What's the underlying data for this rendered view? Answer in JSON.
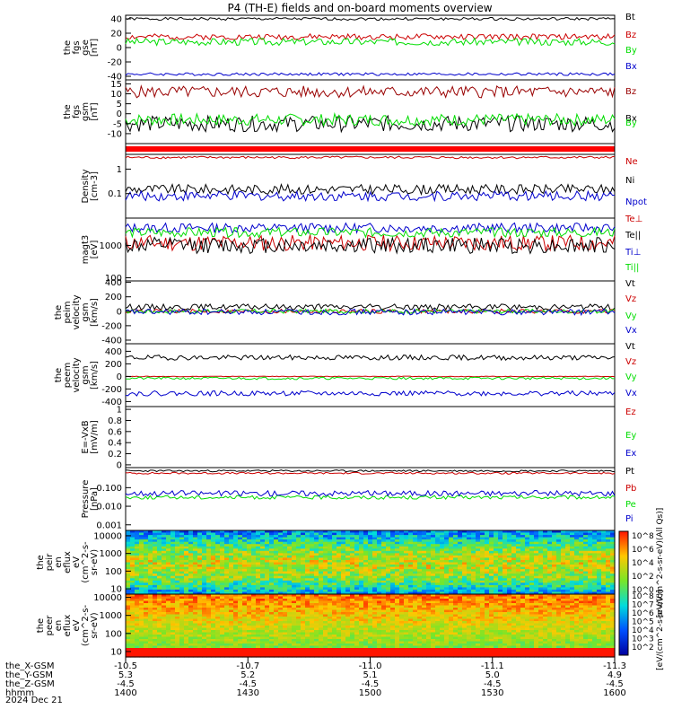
{
  "title": "P4 (TH-E) fields and on-board moments overview",
  "date_label": "2024 Dec 21",
  "colors": {
    "black": "#000000",
    "red": "#cc0000",
    "darkred": "#990000",
    "green": "#00dd00",
    "blue": "#0000cc"
  },
  "chart_data": [
    {
      "type": "line",
      "id": "fgs-gse",
      "ylabel_lines": [
        "the",
        "fgs",
        "gse",
        "[nT]"
      ],
      "ylim": [
        -45,
        45
      ],
      "ticks": [
        40,
        20,
        0,
        -20,
        -40
      ],
      "series": [
        {
          "name": "Bt",
          "color": "#000000",
          "base": 40,
          "amp": 2,
          "seed": 1
        },
        {
          "name": "Bz",
          "color": "#cc0000",
          "base": 15,
          "amp": 4,
          "seed": 2
        },
        {
          "name": "By",
          "color": "#00dd00",
          "base": 8,
          "amp": 5,
          "seed": 3
        },
        {
          "name": "Bx",
          "color": "#0000cc",
          "base": -37,
          "amp": 2,
          "seed": 4
        }
      ]
    },
    {
      "type": "line",
      "id": "fgs-gsm",
      "ylabel_lines": [
        "the",
        "fgs",
        "gsm",
        "[nT]"
      ],
      "ylim": [
        -15,
        17
      ],
      "ticks": [
        15,
        10,
        5,
        0,
        -5,
        -10
      ],
      "series": [
        {
          "name": "Bz",
          "color": "#990000",
          "base": 11,
          "amp": 3,
          "seed": 5
        },
        {
          "name": "Bx",
          "color": "#000000",
          "base": -5,
          "amp": 4,
          "seed": 6
        },
        {
          "name": "By",
          "color": "#00dd00",
          "base": -3,
          "amp": 3,
          "seed": 7
        }
      ]
    },
    {
      "type": "bar",
      "id": "mode-bar",
      "ylabel_lines": [],
      "ticks": []
    },
    {
      "type": "line",
      "id": "density",
      "ylabel_lines": [
        "Density",
        "[cm-3]"
      ],
      "log": true,
      "ylim": [
        0.01,
        4
      ],
      "ticks": [
        1.0,
        0.1
      ],
      "series": [
        {
          "name": "Ne",
          "color": "#cc0000",
          "base": 3,
          "amp": 0.1,
          "seed": 8
        },
        {
          "name": "Ni",
          "color": "#000000",
          "base": 0.15,
          "amp": 0.4,
          "seed": 9
        },
        {
          "name": "Npot",
          "color": "#0000cc",
          "base": 0.08,
          "amp": 0.4,
          "seed": 10
        }
      ]
    },
    {
      "type": "line",
      "id": "temperature",
      "ylabel_lines": [
        "magt3",
        "[eV]"
      ],
      "log": true,
      "ylim": [
        80,
        7000
      ],
      "ticks": [
        1000,
        100
      ],
      "series": [
        {
          "name": "Te⊥",
          "color": "#cc0000",
          "base": 1200,
          "amp": 0.5,
          "seed": 11
        },
        {
          "name": "Te||",
          "color": "#000000",
          "base": 1000,
          "amp": 0.5,
          "seed": 12
        },
        {
          "name": "Ti⊥",
          "color": "#0000cc",
          "base": 3500,
          "amp": 0.3,
          "seed": 13
        },
        {
          "name": "Ti||",
          "color": "#00dd00",
          "base": 2500,
          "amp": 0.3,
          "seed": 14
        }
      ]
    },
    {
      "type": "line",
      "id": "peim-velocity",
      "ylabel_lines": [
        "the",
        "peim",
        "velocity",
        "gsm",
        "[km/s]"
      ],
      "ylim": [
        -450,
        420
      ],
      "ticks": [
        400,
        200,
        0,
        -200,
        -400
      ],
      "series": [
        {
          "name": "Vt",
          "color": "#000000",
          "base": 60,
          "amp": 40,
          "seed": 15
        },
        {
          "name": "Vz",
          "color": "#cc0000",
          "base": 0,
          "amp": 30,
          "seed": 16
        },
        {
          "name": "Vy",
          "color": "#00dd00",
          "base": 0,
          "amp": 30,
          "seed": 17
        },
        {
          "name": "Vx",
          "color": "#0000cc",
          "base": -10,
          "amp": 40,
          "seed": 18
        }
      ]
    },
    {
      "type": "line",
      "id": "peem-velocity",
      "ylabel_lines": [
        "the",
        "peem",
        "velocity",
        "gsm",
        "[km/s]"
      ],
      "ylim": [
        -480,
        520
      ],
      "ticks": [
        400,
        200,
        0,
        -200,
        -400
      ],
      "series": [
        {
          "name": "Vt",
          "color": "#000000",
          "base": 300,
          "amp": 40,
          "seed": 19
        },
        {
          "name": "Vz",
          "color": "#cc0000",
          "base": 0,
          "amp": 5,
          "seed": 20
        },
        {
          "name": "Vy",
          "color": "#00dd00",
          "base": -30,
          "amp": 20,
          "seed": 21
        },
        {
          "name": "Vx",
          "color": "#0000cc",
          "base": -270,
          "amp": 40,
          "seed": 22
        }
      ]
    },
    {
      "type": "line",
      "id": "efield",
      "ylabel_lines": [
        "E=-VxB",
        "[mV/m]"
      ],
      "ylim": [
        -0.05,
        1.05
      ],
      "ticks": [
        1.0,
        0.8,
        0.6,
        0.4,
        0.2,
        0.0
      ],
      "series": [
        {
          "name": "Ez",
          "color": "#cc0000"
        },
        {
          "name": "Ey",
          "color": "#00dd00"
        },
        {
          "name": "Ex",
          "color": "#0000cc"
        }
      ]
    },
    {
      "type": "line",
      "id": "pressure",
      "ylabel_lines": [
        "Pressure",
        "[nPa]"
      ],
      "log": true,
      "ylim": [
        0.0005,
        1.2
      ],
      "ticks": [
        0.1,
        0.01,
        0.001
      ],
      "tick_labels": [
        "0.100",
        "0.010",
        "0.001"
      ],
      "series": [
        {
          "name": "Pt",
          "color": "#000000",
          "base": 0.8,
          "amp": 0.1,
          "seed": 23
        },
        {
          "name": "Pb",
          "color": "#cc0000",
          "base": 0.6,
          "amp": 0.1,
          "seed": 24
        },
        {
          "name": "Pe",
          "color": "#00dd00",
          "base": 0.03,
          "amp": 0.2,
          "seed": 25
        },
        {
          "name": "Pi",
          "color": "#0000cc",
          "base": 0.05,
          "amp": 0.3,
          "seed": 26
        }
      ]
    },
    {
      "type": "heatmap",
      "id": "peir",
      "ylabel_lines": [
        "the",
        "peir",
        "en",
        "eflux",
        "eV",
        "(cm^2-s-",
        "sr-eV)"
      ],
      "log": true,
      "ylim": [
        5,
        20000
      ],
      "ticks": [
        10000,
        1000,
        100,
        10
      ]
    },
    {
      "type": "heatmap",
      "id": "peer",
      "ylabel_lines": [
        "the",
        "peer",
        "en",
        "eflux",
        "eV",
        "(cm^2-s-",
        "sr-eV)"
      ],
      "log": true,
      "ylim": [
        5,
        15000
      ],
      "ticks": [
        10000,
        1000,
        100,
        10
      ]
    }
  ],
  "colorbar": {
    "label": "[eV/(cm^2-s-sr-eV)]",
    "side_label": "[eV/(cm^2-s-sr-eV)(All Qs)]",
    "upper_ticks": [
      "10^8",
      "10^6",
      "10^4",
      "10^2",
      "10^0"
    ],
    "lower_ticks": [
      "10^8",
      "10^7",
      "10^6",
      "10^5",
      "10^4",
      "10^3",
      "10^2"
    ]
  },
  "xaxis": {
    "row_labels": [
      "the_X-GSM",
      "the_Y-GSM",
      "the_Z-GSM",
      "hhmm"
    ],
    "columns": [
      [
        "-10.5",
        "5.3",
        "-4.5",
        "1400"
      ],
      [
        "-10.7",
        "5.2",
        "-4.5",
        "1430"
      ],
      [
        "-11.0",
        "5.1",
        "-4.5",
        "1500"
      ],
      [
        "-11.1",
        "5.0",
        "-4.5",
        "1530"
      ],
      [
        "-11.3",
        "4.9",
        "-4.5",
        "1600"
      ]
    ]
  }
}
